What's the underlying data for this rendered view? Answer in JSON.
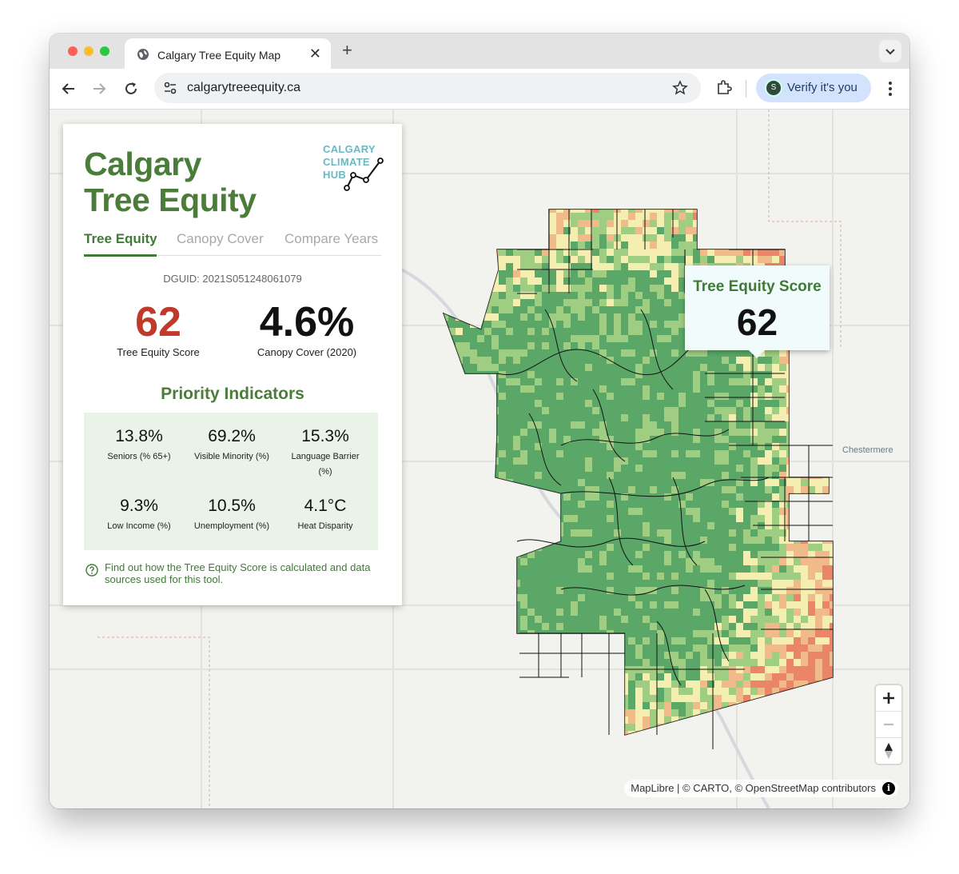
{
  "browser": {
    "tab_title": "Calgary Tree Equity Map",
    "tab_close": "✕",
    "new_tab": "+",
    "url": "calgarytreeequity.ca",
    "verify_label": "Verify it's you",
    "avatar_letter": "S"
  },
  "panel": {
    "title_line1": "Calgary",
    "title_line2": "Tree Equity",
    "logo_lines": [
      "CALGARY",
      "CLIMATE",
      "HUB"
    ],
    "tabs": [
      {
        "label": "Tree Equity",
        "active": true
      },
      {
        "label": "Canopy Cover",
        "active": false
      },
      {
        "label": "Compare Years",
        "active": false
      }
    ],
    "dguid": "DGUID: 2021S051248061079",
    "score_value": "62",
    "score_label": "Tree Equity Score",
    "canopy_value": "4.6%",
    "canopy_label": "Canopy Cover (2020)",
    "priority_title": "Priority Indicators",
    "indicators": [
      {
        "value": "13.8%",
        "label": "Seniors (% 65+)"
      },
      {
        "value": "69.2%",
        "label": "Visible Minority (%)"
      },
      {
        "value": "15.3%",
        "label": "Language Barrier (%)"
      },
      {
        "value": "9.3%",
        "label": "Low Income (%)"
      },
      {
        "value": "10.5%",
        "label": "Unemployment (%)"
      },
      {
        "value": "4.1°C",
        "label": "Heat Disparity"
      }
    ],
    "info_text": "Find out how the Tree Equity Score is calculated and data sources used for this tool."
  },
  "popup": {
    "title": "Tree Equity Score",
    "score": "62"
  },
  "map": {
    "place_label": "Chestermere",
    "attribution": "MapLibre | © CARTO, © OpenStreetMap contributors",
    "attribution_icon": "i",
    "colors": {
      "high": "#3f9a5c",
      "mid": "#8fc77a",
      "low_mid": "#f3eeb0",
      "low": "#f0b183",
      "lowest": "#e7735a"
    }
  },
  "colors": {
    "brand_green": "#4b7d3a",
    "score_red": "#c0392b",
    "logo_teal": "#6ab9c2"
  }
}
